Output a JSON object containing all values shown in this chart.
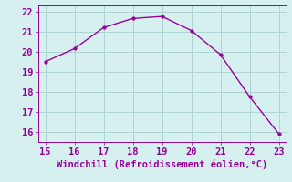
{
  "x": [
    15,
    16,
    17,
    18,
    19,
    20,
    21,
    22,
    23
  ],
  "y": [
    19.5,
    20.15,
    21.2,
    21.65,
    21.75,
    21.05,
    19.85,
    17.75,
    15.9
  ],
  "line_color": "#990099",
  "marker_color": "#990099",
  "bg_color": "#d6f0f0",
  "grid_color": "#aed4d4",
  "xlabel": "Windchill (Refroidissement éolien,°C)",
  "xlabel_color": "#990099",
  "tick_color": "#990099",
  "spine_color": "#990099",
  "xlim": [
    14.75,
    23.25
  ],
  "ylim": [
    15.5,
    22.3
  ],
  "xticks": [
    15,
    16,
    17,
    18,
    19,
    20,
    21,
    22,
    23
  ],
  "yticks": [
    16,
    17,
    18,
    19,
    20,
    21,
    22
  ],
  "xlabel_fontsize": 7.5,
  "tick_fontsize": 7.5,
  "marker_size": 2.5,
  "line_width": 1.0
}
